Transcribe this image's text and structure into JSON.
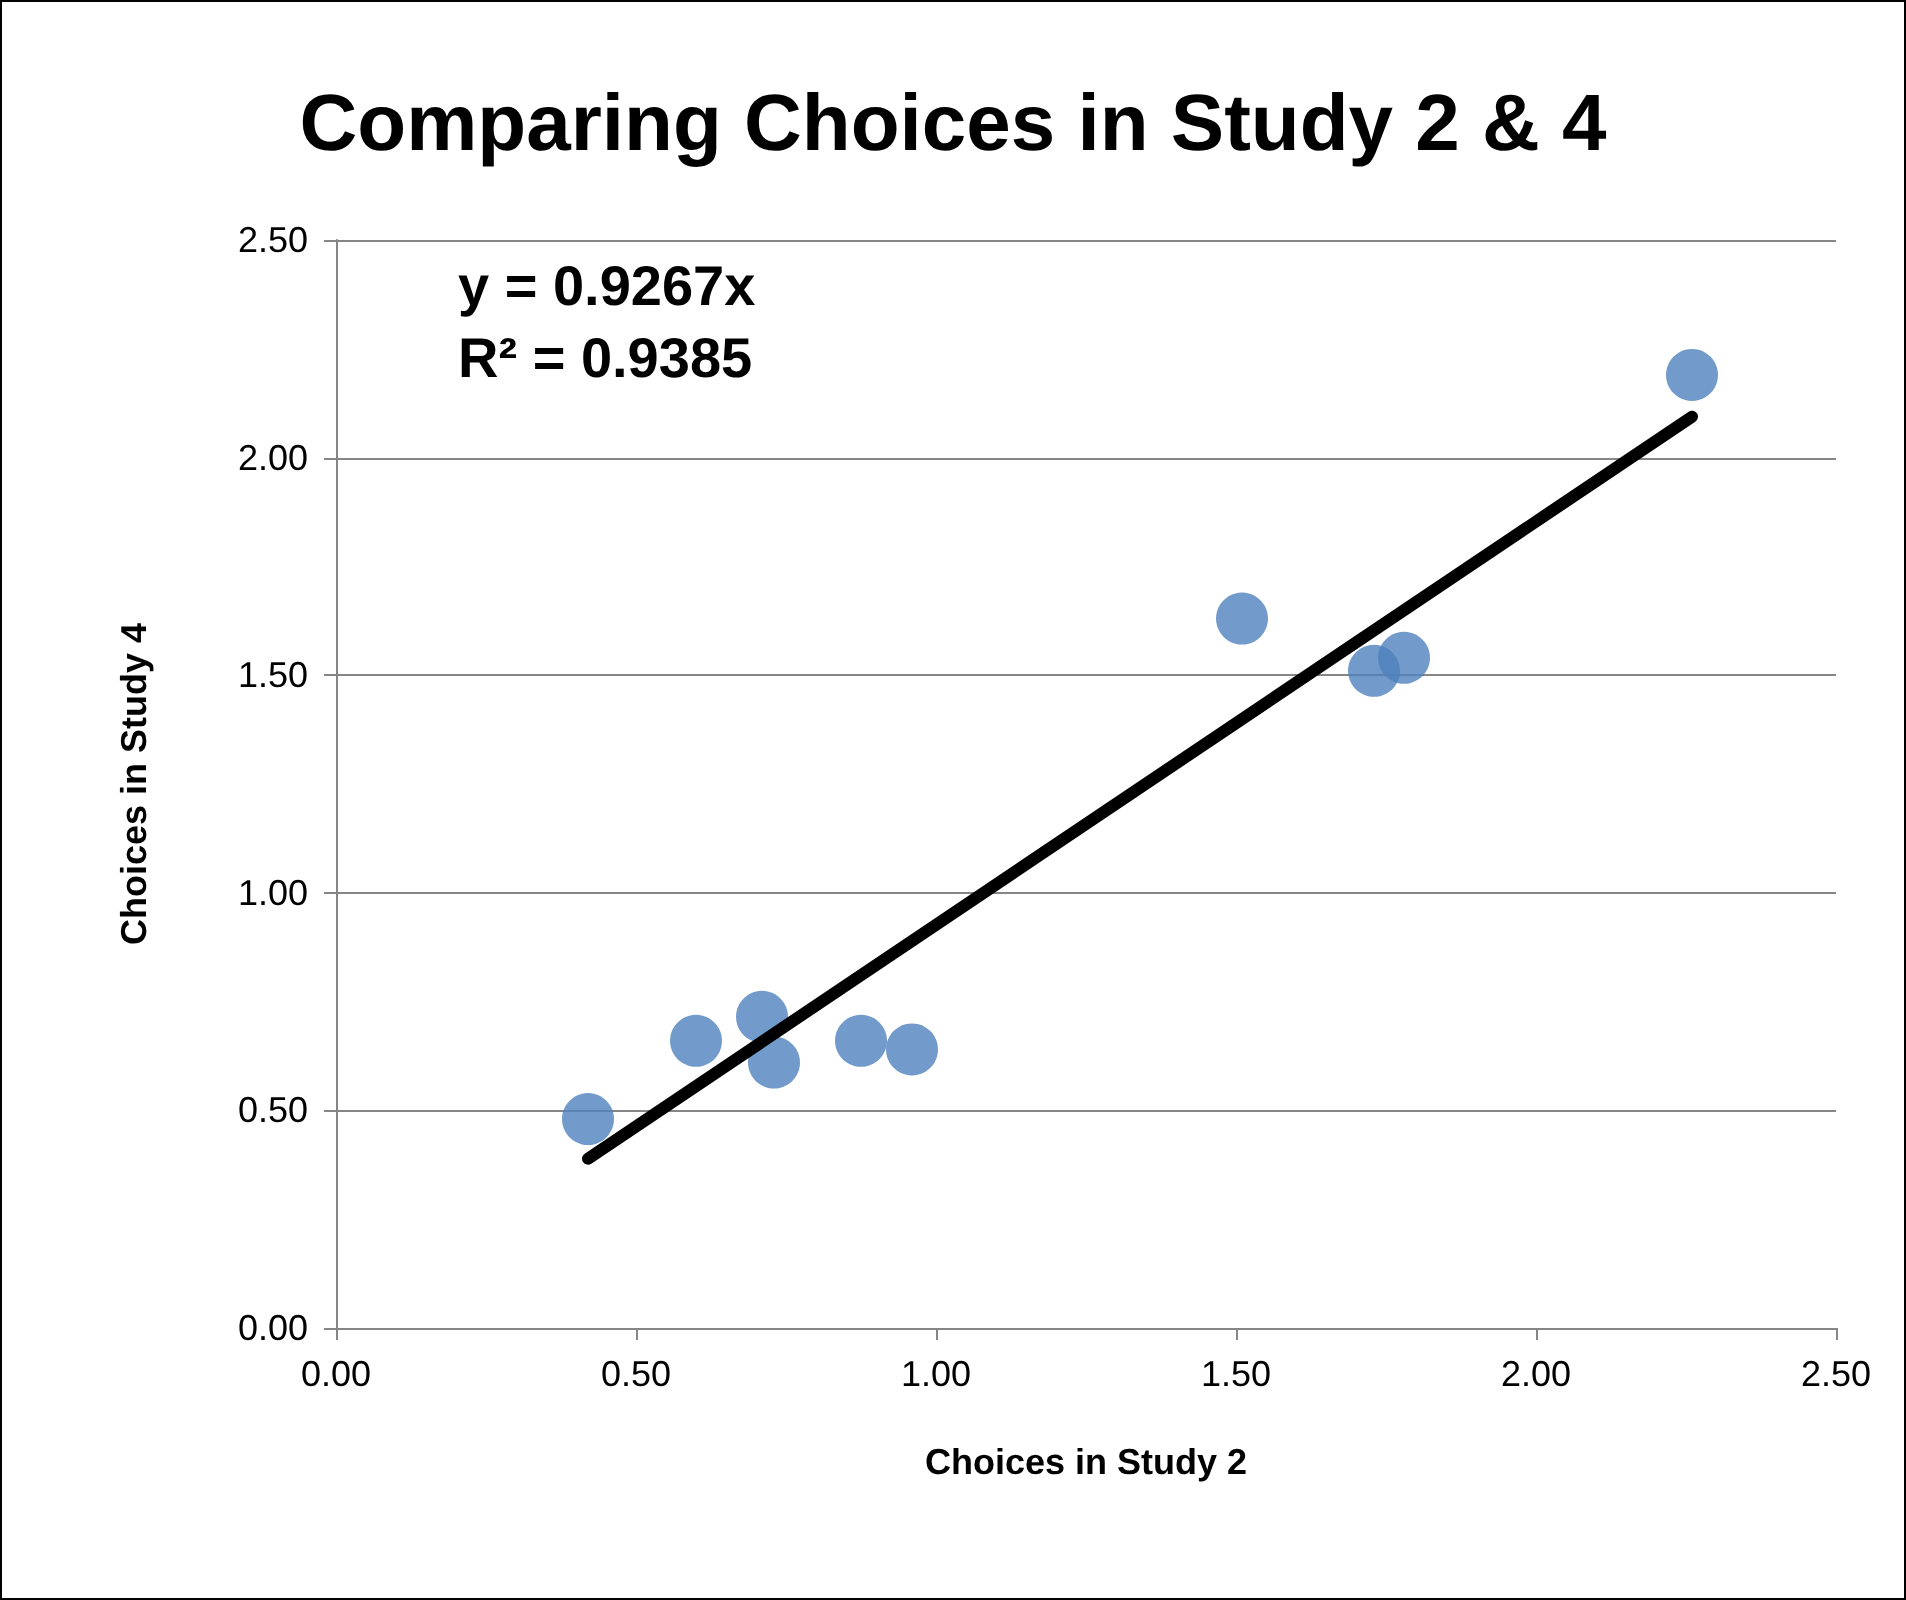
{
  "chart_data": {
    "type": "scatter",
    "title": "Comparing Choices in Study 2 & 4",
    "xlabel": "Choices in Study 2",
    "ylabel": "Choices in Study 4",
    "annotations": [
      "y = 0.9267x",
      "R² = 0.9385"
    ],
    "series": [
      {
        "marker": "circle",
        "color": "#4f81bd",
        "x": [
          0.42,
          0.6,
          0.71,
          0.73,
          0.875,
          0.96,
          1.51,
          1.73,
          1.78,
          2.26
        ],
        "values": [
          0.48,
          0.66,
          0.715,
          0.61,
          0.66,
          0.64,
          1.63,
          1.51,
          1.54,
          2.19
        ]
      },
      {
        "type": "line",
        "marker": "none",
        "color": "#000000",
        "x": [
          0.42,
          2.26
        ],
        "values": [
          0.389,
          2.094
        ]
      }
    ],
    "xlim": [
      0,
      2.5
    ],
    "xticks": [
      {
        "value": 0,
        "label": "0.00"
      },
      {
        "value": 0.5,
        "label": "0.50"
      },
      {
        "value": 1,
        "label": "1.00"
      },
      {
        "value": 1.5,
        "label": "1.50"
      },
      {
        "value": 2,
        "label": "2.00"
      },
      {
        "value": 2.5,
        "label": "2.50"
      }
    ],
    "ylim": [
      0,
      2.5
    ],
    "yticks": [
      {
        "value": 0,
        "label": "0.00"
      },
      {
        "value": 0.5,
        "label": "0.50"
      },
      {
        "value": 1,
        "label": "1.00"
      },
      {
        "value": 1.5,
        "label": "1.50"
      },
      {
        "value": 2,
        "label": "2.00"
      },
      {
        "value": 2.5,
        "label": "2.50"
      }
    ],
    "grid": "y"
  }
}
